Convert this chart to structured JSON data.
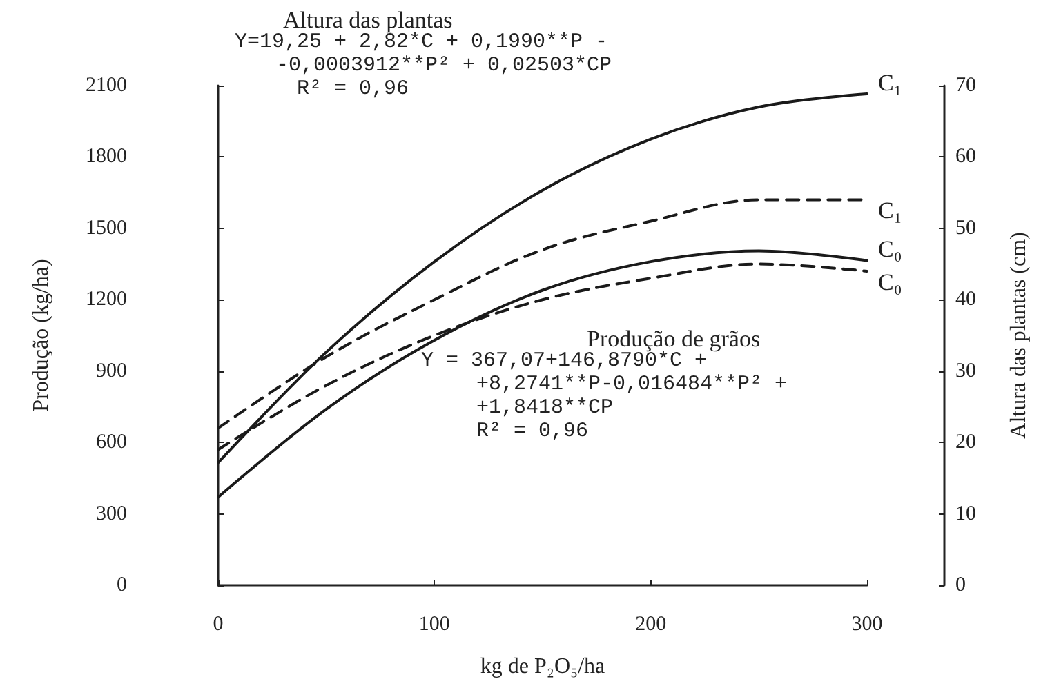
{
  "chart_data": {
    "type": "line",
    "xlabel": "kg de P₂O₅/ha",
    "ylabel": "Produção (kg/ha)",
    "y2label": "Altura das plantas (cm)",
    "x": [
      0,
      50,
      100,
      150,
      200,
      250,
      300
    ],
    "series": [
      {
        "name": "C₁",
        "color": "#1a1a1a",
        "values": [
          515,
          980,
          1360,
          1660,
          1875,
          2010,
          2065
        ]
      },
      {
        "name": "C₁",
        "color": "#1a1a1a",
        "axis": "y2",
        "line_style": "dashed",
        "values": [
          22,
          32,
          40,
          47,
          51,
          54,
          54
        ]
      },
      {
        "name": "C₀",
        "color": "#1a1a1a",
        "values": [
          370,
          740,
          1030,
          1240,
          1360,
          1405,
          1365
        ]
      },
      {
        "name": "C₀",
        "color": "#1a1a1a",
        "axis": "y2",
        "line_style": "dashed",
        "values": [
          19,
          28,
          35,
          40,
          43,
          45,
          44
        ]
      }
    ],
    "xlim": [
      0,
      300
    ],
    "xticks": [
      0,
      100,
      200,
      300
    ],
    "ylim": [
      0,
      2100
    ],
    "yticks": [
      0,
      300,
      600,
      900,
      1200,
      1500,
      1800,
      2100
    ],
    "y2lim": [
      0,
      70
    ],
    "y2ticks": [
      0,
      10,
      20,
      30,
      40,
      50,
      60,
      70
    ],
    "grid": false,
    "legend": false,
    "marker": "none",
    "line_style": "solid",
    "annotations": [
      "Altura das plantas",
      "Y=19,25 + 2,82*C + 0,1990**P -",
      "-0,0003912**P² + 0,02503*CP",
      "R² = 0,96",
      "Produção de grãos",
      "Y = 367,07+146,8790*C +",
      "+8,2741**P-0,016484**P² +",
      "+1,8418**CP",
      "R² = 0,96"
    ]
  }
}
